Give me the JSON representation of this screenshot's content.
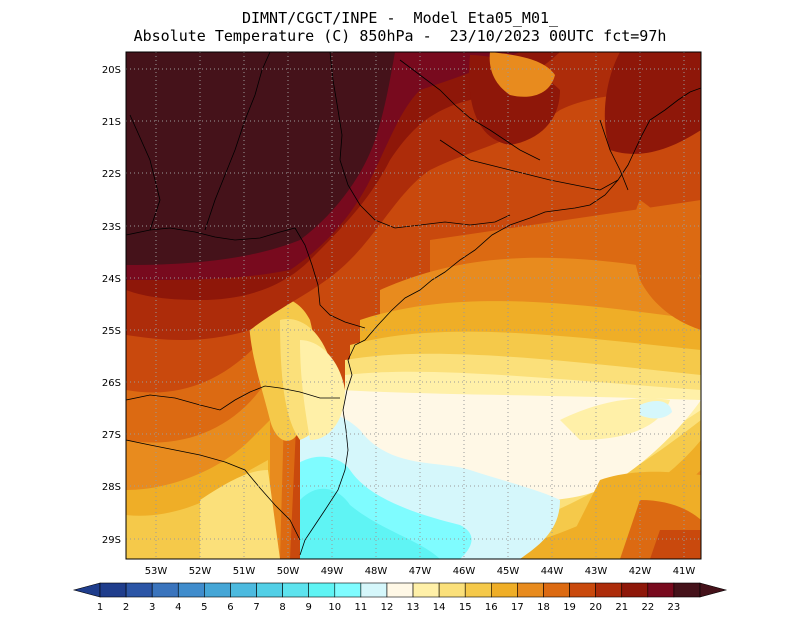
{
  "header": {
    "line1": "DIMNT/CGCT/INPE -  Model Eta05_M01_",
    "line2": "Absolute Temperature (C) 850hPa -  23/10/2023 00UTC fct=97h"
  },
  "map": {
    "lat_labels": [
      "20S",
      "21S",
      "22S",
      "23S",
      "24S",
      "25S",
      "26S",
      "27S",
      "28S",
      "29S"
    ],
    "lon_labels": [
      "53W",
      "52W",
      "51W",
      "50W",
      "49W",
      "48W",
      "47W",
      "46W",
      "45W",
      "44W",
      "43W",
      "42W",
      "41W"
    ],
    "colors": {
      "c1": "#1f3d8c",
      "c2": "#2b55a6",
      "c3": "#3a74bd",
      "c4": "#3f8ccc",
      "c5": "#45a6d6",
      "c6": "#4cbadf",
      "c7": "#52cfe6",
      "c8": "#5de3ee",
      "c9": "#5ff4f4",
      "c10": "#7ffcff",
      "c11": "#d5f7fb",
      "c12": "#fff8e6",
      "c13": "#fff0a8",
      "c14": "#fbe07a",
      "c15": "#f5c94a",
      "c16": "#efae27",
      "c17": "#e88b1e",
      "c18": "#dc6a12",
      "c19": "#c9490d",
      "c20": "#ad2c0a",
      "c21": "#8e1709",
      "c22": "#780a1e",
      "c23": "#45121a"
    }
  },
  "colorbar": {
    "labels": [
      "1",
      "2",
      "3",
      "4",
      "5",
      "6",
      "7",
      "8",
      "9",
      "10",
      "11",
      "12",
      "13",
      "14",
      "15",
      "16",
      "17",
      "18",
      "19",
      "20",
      "21",
      "22",
      "23"
    ],
    "colors": [
      "#1f3d8c",
      "#2b55a6",
      "#3a74bd",
      "#3f8ccc",
      "#45a6d6",
      "#4cbadf",
      "#52cfe6",
      "#5de3ee",
      "#5ff4f4",
      "#7ffcff",
      "#d5f7fb",
      "#fff8e6",
      "#fff0a8",
      "#fbe07a",
      "#f5c94a",
      "#efae27",
      "#e88b1e",
      "#dc6a12",
      "#c9490d",
      "#ad2c0a",
      "#8e1709",
      "#780a1e",
      "#45121a"
    ]
  }
}
